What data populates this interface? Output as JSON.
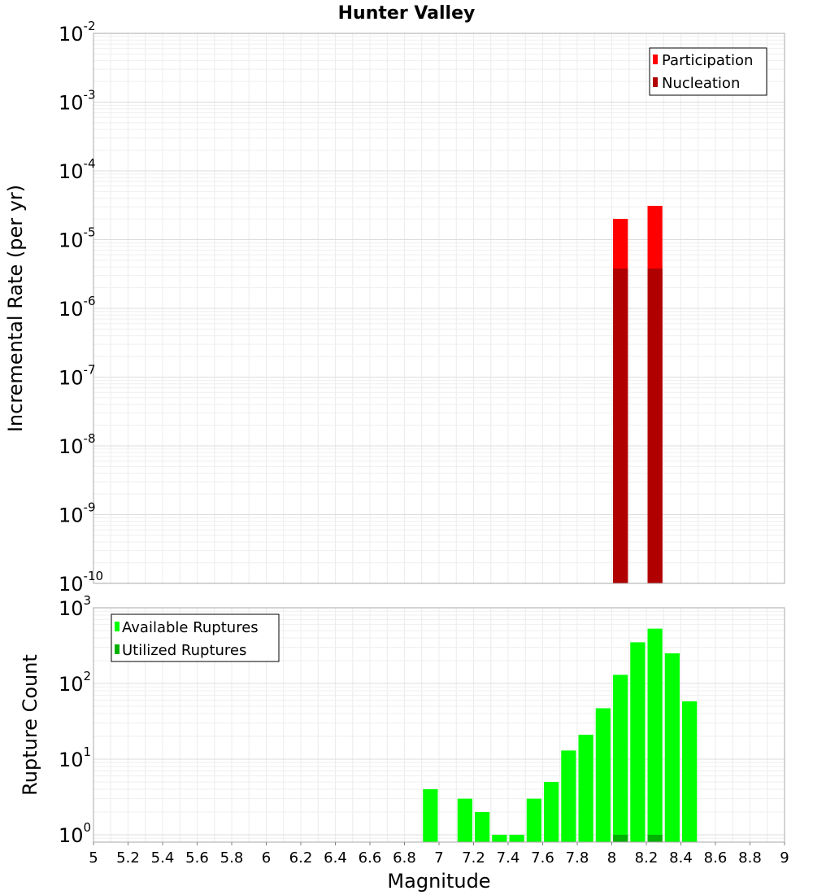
{
  "chart_data": [
    {
      "type": "bar",
      "title": "Hunter Valley",
      "xlabel": "",
      "ylabel": "Incremental Rate (per yr)",
      "yscale": "log",
      "ylim": [
        1e-10,
        0.01
      ],
      "xlim": [
        5,
        9
      ],
      "grid": true,
      "legend_position": "top-right",
      "y_ticks": [
        {
          "base": "10",
          "exp": "-2"
        },
        {
          "base": "10",
          "exp": "-3"
        },
        {
          "base": "10",
          "exp": "-4"
        },
        {
          "base": "10",
          "exp": "-5"
        },
        {
          "base": "10",
          "exp": "-6"
        },
        {
          "base": "10",
          "exp": "-7"
        },
        {
          "base": "10",
          "exp": "-8"
        },
        {
          "base": "10",
          "exp": "-9"
        },
        {
          "base": "10",
          "exp": "-10"
        }
      ],
      "series": [
        {
          "name": "Participation",
          "color": "#ff0000",
          "x": [
            8.05,
            8.25
          ],
          "values": [
            2e-05,
            3.1e-05
          ]
        },
        {
          "name": "Nucleation",
          "color": "#b00000",
          "x": [
            8.05,
            8.25
          ],
          "values": [
            3.8e-06,
            3.8e-06
          ]
        }
      ]
    },
    {
      "type": "bar",
      "xlabel": "Magnitude",
      "ylabel": "Rupture Count",
      "yscale": "log",
      "ylim": [
        0.8,
        1000
      ],
      "xlim": [
        5,
        9
      ],
      "grid": true,
      "legend_position": "top-left",
      "y_ticks": [
        {
          "base": "10",
          "exp": "3"
        },
        {
          "base": "10",
          "exp": "2"
        },
        {
          "base": "10",
          "exp": "1"
        },
        {
          "base": "10",
          "exp": "0"
        }
      ],
      "x_ticks": [
        "5",
        "5.2",
        "5.4",
        "5.6",
        "5.8",
        "6",
        "6.2",
        "6.4",
        "6.6",
        "6.8",
        "7",
        "7.2",
        "7.4",
        "7.6",
        "7.8",
        "8",
        "8.2",
        "8.4",
        "8.6",
        "8.8",
        "9"
      ],
      "series": [
        {
          "name": "Available Ruptures",
          "color": "#00ff00",
          "x": [
            6.95,
            7.15,
            7.25,
            7.35,
            7.45,
            7.55,
            7.65,
            7.75,
            7.85,
            7.95,
            8.05,
            8.15,
            8.25,
            8.35,
            8.45
          ],
          "values": [
            4,
            3,
            2,
            1,
            1,
            3,
            5,
            13,
            21,
            47,
            130,
            350,
            530,
            250,
            58
          ]
        },
        {
          "name": "Utilized Ruptures",
          "color": "#00b000",
          "x": [
            8.05,
            8.25
          ],
          "values": [
            1,
            1
          ]
        }
      ]
    }
  ]
}
